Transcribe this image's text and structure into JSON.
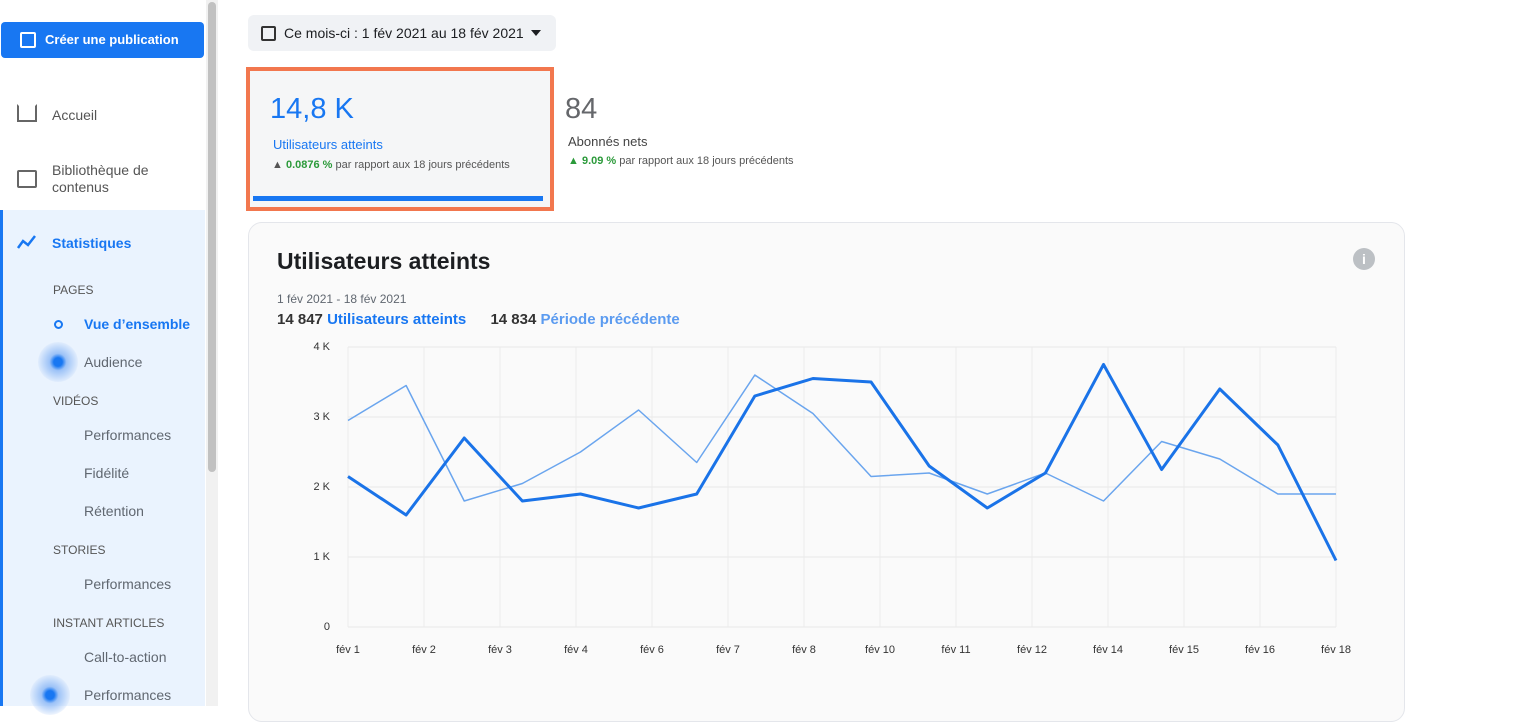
{
  "sidebar": {
    "create_button": "Créer une publication",
    "nav": [
      "Accueil",
      "Bibliothèque de contenus",
      "Statistiques"
    ],
    "sections": [
      {
        "title": "PAGES",
        "items": [
          "Vue d’ensemble",
          "Audience"
        ]
      },
      {
        "title": "VIDÉOS",
        "items": [
          "Performances",
          "Fidélité",
          "Rétention"
        ]
      },
      {
        "title": "STORIES",
        "items": [
          "Performances"
        ]
      },
      {
        "title": "INSTANT ARTICLES",
        "items": [
          "Call-to-action",
          "Performances"
        ]
      }
    ]
  },
  "date_filter": "Ce mois-ci : 1 fév 2021 au 18 fév 2021",
  "kpis": [
    {
      "value": "14,8 K",
      "label": "Utilisateurs atteints",
      "change": "0.0876 %",
      "comparison": "par rapport aux 18 jours précédents"
    },
    {
      "value": "84",
      "label": "Abonnés nets",
      "change": "9.09 %",
      "comparison": "par rapport aux 18 jours précédents"
    }
  ],
  "chart_data": {
    "type": "line",
    "title": "Utilisateurs atteints",
    "subtitle": "1 fév 2021 - 18 fév 2021",
    "totals": [
      "14 847",
      "14 834"
    ],
    "x_labels": [
      "fév 1",
      "fév 2",
      "fév 3",
      "fév 4",
      "fév 6",
      "fév 7",
      "fév 8",
      "fév 10",
      "fév 11",
      "fév 12",
      "fév 14",
      "fév 15",
      "fév 16",
      "fév 18"
    ],
    "series": [
      {
        "name": "Utilisateurs atteints",
        "color": "#1a73e8",
        "values": [
          2150,
          1600,
          2700,
          1800,
          1900,
          1700,
          1900,
          3300,
          3550,
          3500,
          2300,
          1700,
          2200,
          3750,
          2250,
          3400,
          2600,
          950
        ]
      },
      {
        "name": "Période précédente",
        "color": "#6aa5ee",
        "values": [
          2950,
          3450,
          1800,
          2050,
          2500,
          3100,
          2350,
          3600,
          3050,
          2150,
          2200,
          1900,
          2200,
          1800,
          2650,
          2400,
          1900,
          1900
        ]
      }
    ],
    "ylim": [
      0,
      4000
    ],
    "yticks": [
      0,
      {
        "value": 1000,
        "label": "1 K"
      },
      {
        "value": 2000,
        "label": "2 K"
      },
      {
        "value": 3000,
        "label": "3 K"
      },
      {
        "value": 4000,
        "label": "4 K"
      }
    ],
    "grid": true
  }
}
